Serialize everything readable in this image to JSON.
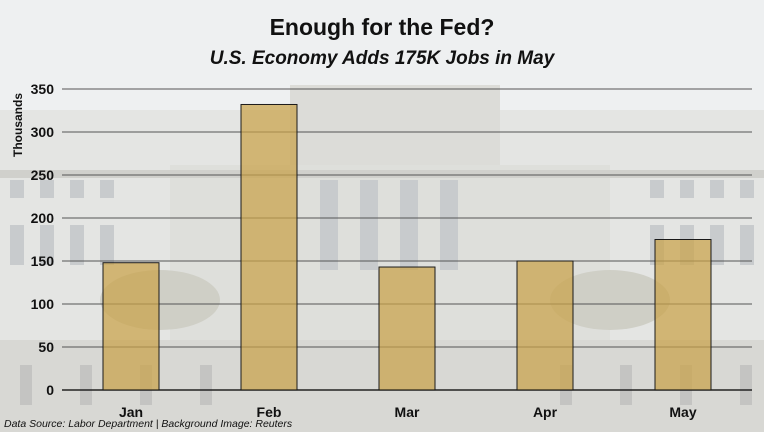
{
  "chart_data": {
    "type": "bar",
    "title": "Enough for the Fed?",
    "subtitle": "U.S. Economy Adds 175K Jobs in May",
    "ylabel": "Thousands",
    "xlabel": "",
    "categories": [
      "Jan",
      "Feb",
      "Mar",
      "Apr",
      "May"
    ],
    "values": [
      148,
      332,
      143,
      150,
      175
    ],
    "ylim": [
      0,
      350
    ],
    "yticks": [
      0,
      50,
      100,
      150,
      200,
      250,
      300,
      350
    ],
    "grid": true,
    "legend": "none",
    "colors": {
      "bar_fill": "#c9a24a",
      "bar_stroke": "#1a1a1a",
      "grid": "#555555"
    }
  },
  "source": "Data Source: Labor Department | Background Image: Reuters"
}
